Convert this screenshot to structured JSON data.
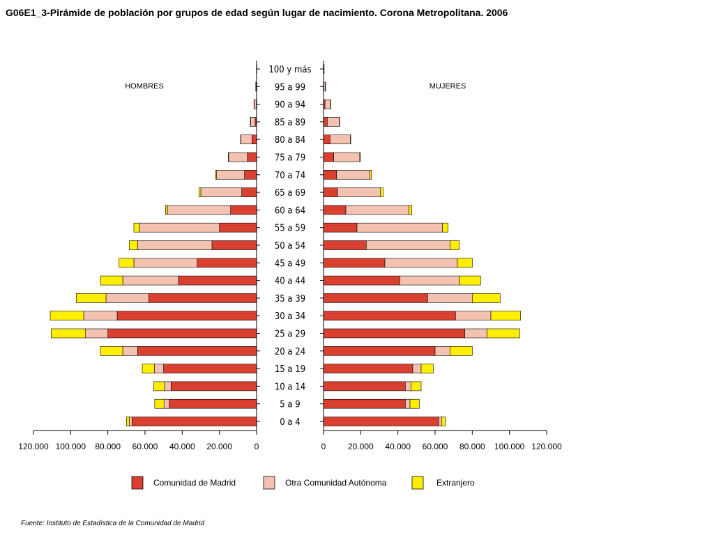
{
  "title": "G06E1_3-Pirámide de población por grupos de edad según lugar de nacimiento.  Corona Metropolitana.  2006",
  "source": "Fuente: Instituto de Estadística de la Comunidad de Madrid",
  "chart_data": {
    "type": "bar",
    "orientation": "horizontal-pyramid",
    "left_label": "HOMBRES",
    "right_label": "MUJERES",
    "categories": [
      "0 a 4",
      "5 a 9",
      "10 a 14",
      "15 a 19",
      "20 a 24",
      "25 a 29",
      "30 a 34",
      "35 a 39",
      "40 a  44",
      "45 a 49",
      "50 a 54",
      "55 a 59",
      "60 a 64",
      "65 a 69",
      "70 a 74",
      "75 a 79",
      "80 a 84",
      "85 a 89",
      "90 a 94",
      "95 a 99",
      "100 y más"
    ],
    "xlim": [
      0,
      120000
    ],
    "x_ticks": [
      0,
      20000,
      40000,
      60000,
      80000,
      100000,
      120000
    ],
    "x_tick_labels": [
      "0",
      "20.000",
      "40.000",
      "60.000",
      "80.000",
      "100.000",
      "120.000"
    ],
    "legend_position": "bottom",
    "colors": {
      "Comunidad de Madrid": "#d94030",
      "Otra Comunidad Autónoma": "#f4c2b0",
      "Extranjero": "#ffee00"
    },
    "series_order": [
      "Comunidad de Madrid",
      "Otra Comunidad Autónoma",
      "Extranjero"
    ],
    "hombres": [
      {
        "name": "Comunidad de Madrid",
        "values": [
          67000,
          47000,
          46000,
          50000,
          64000,
          80000,
          75000,
          58000,
          42000,
          32000,
          24000,
          20000,
          14000,
          8000,
          6500,
          5000,
          2500,
          800,
          200,
          50,
          10
        ]
      },
      {
        "name": "Otra Comunidad Autónoma",
        "values": [
          1500,
          2800,
          3500,
          5000,
          8000,
          12000,
          18000,
          23000,
          30000,
          34000,
          40000,
          43000,
          34000,
          22000,
          15000,
          10000,
          6000,
          2500,
          1200,
          400,
          80
        ]
      },
      {
        "name": "Extranjero",
        "values": [
          1500,
          5000,
          5800,
          6500,
          12000,
          18500,
          18000,
          16000,
          12000,
          8000,
          4500,
          3000,
          1000,
          1000,
          500,
          200,
          100,
          50,
          10,
          5,
          2
        ]
      }
    ],
    "mujeres": [
      {
        "name": "Comunidad de Madrid",
        "values": [
          62000,
          44000,
          44000,
          48000,
          60000,
          76000,
          71000,
          56000,
          41000,
          33000,
          23000,
          18000,
          12000,
          7500,
          7000,
          5500,
          3500,
          2000,
          800,
          200,
          30
        ]
      },
      {
        "name": "Otra Comunidad Autónoma",
        "values": [
          1500,
          2500,
          3000,
          4500,
          8000,
          12000,
          19000,
          24000,
          32000,
          39000,
          45000,
          46000,
          34000,
          23000,
          18000,
          14000,
          11000,
          6500,
          3000,
          800,
          150
        ]
      },
      {
        "name": "Extranjero",
        "values": [
          2000,
          5000,
          5500,
          6500,
          12000,
          17500,
          16000,
          15000,
          11500,
          8000,
          5000,
          3000,
          1500,
          1500,
          800,
          300,
          150,
          50,
          20,
          5,
          2
        ]
      }
    ]
  }
}
